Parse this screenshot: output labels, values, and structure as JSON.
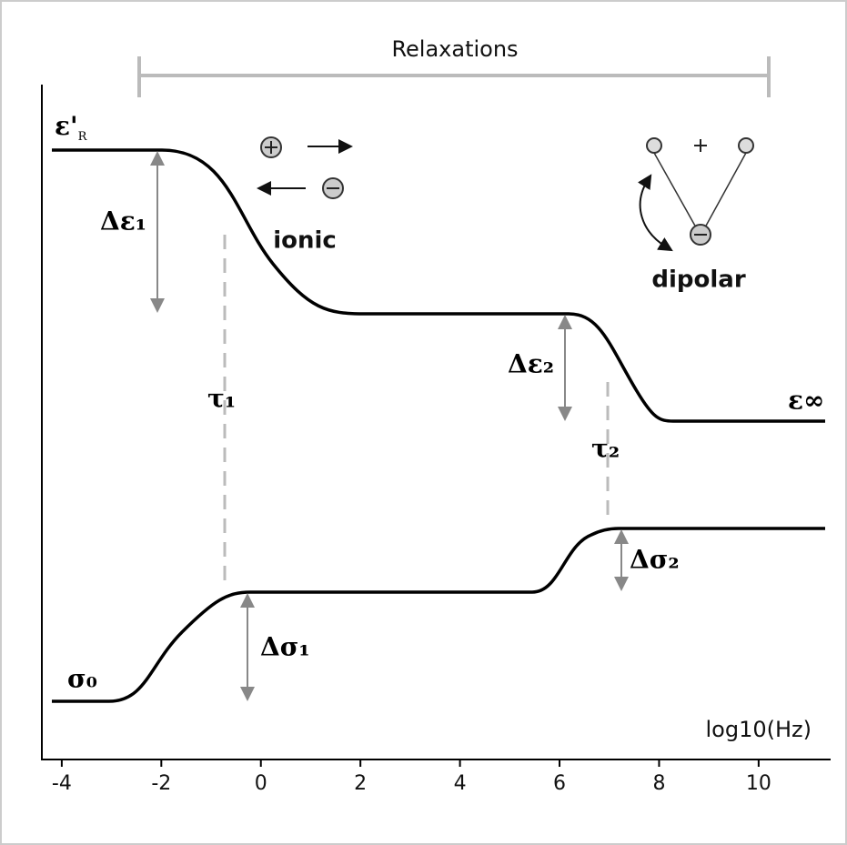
{
  "title": "Relaxations",
  "axis": {
    "label": "log10(Hz)",
    "xlim": [
      -4.4,
      11.3
    ],
    "xticks": [
      -4,
      -2,
      0,
      2,
      4,
      6,
      8,
      10
    ]
  },
  "labels": {
    "eps_r": {
      "symbol": "ε'",
      "subscript": "R"
    },
    "delta_eps_1": "Δε₁",
    "ionic": "ionic",
    "dipolar": "dipolar",
    "delta_eps_2": "Δε₂",
    "eps_inf": "ε∞",
    "tau_1": "τ₁",
    "tau_2": "τ₂",
    "delta_sigma_2": "Δσ₂",
    "delta_sigma_1": "Δσ₁",
    "sigma_0": "σ₀"
  }
}
